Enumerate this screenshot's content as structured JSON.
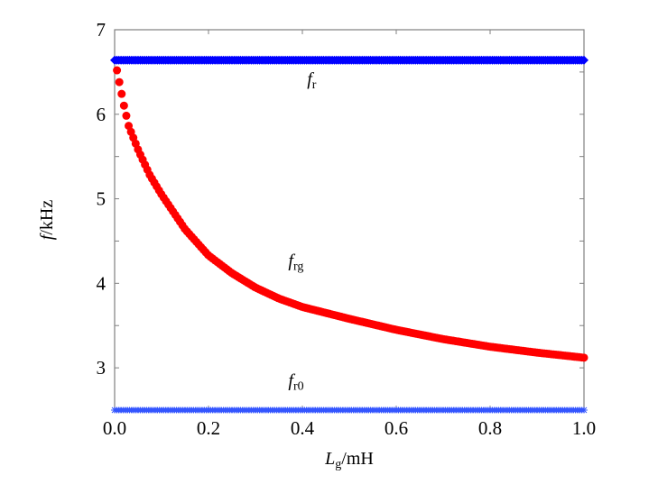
{
  "chart_data": {
    "type": "scatter",
    "title": "",
    "xlabel": {
      "main": "L",
      "sub": "g",
      "unit": "/mH"
    },
    "ylabel": {
      "main": "f",
      "unit": "/kHz"
    },
    "xlim": [
      0,
      1.0
    ],
    "ylim": [
      2.5,
      7
    ],
    "xticks": [
      "0.0",
      "0.2",
      "0.4",
      "0.6",
      "0.8",
      "1.0"
    ],
    "xtick_values": [
      0,
      0.2,
      0.4,
      0.6,
      0.8,
      1.0
    ],
    "yticks": [
      "3",
      "4",
      "5",
      "6",
      "7"
    ],
    "ytick_values": [
      3,
      4,
      5,
      6,
      7
    ],
    "grid": false,
    "series": [
      {
        "name": "fr",
        "label_main": "f",
        "label_sub": "r",
        "color": "#0000ff",
        "marker": "diamond",
        "x": [
          0,
          1.0
        ],
        "y": [
          6.64,
          6.64
        ],
        "label_at": [
          0.41,
          6.35
        ]
      },
      {
        "name": "frg",
        "label_main": "f",
        "label_sub": "rg",
        "color": "#ff0000",
        "marker": "circle",
        "x": [
          0.005,
          0.01,
          0.02,
          0.03,
          0.05,
          0.075,
          0.1,
          0.15,
          0.2,
          0.25,
          0.3,
          0.35,
          0.4,
          0.5,
          0.6,
          0.7,
          0.8,
          0.9,
          1.0
        ],
        "y": [
          6.52,
          6.38,
          6.1,
          5.86,
          5.58,
          5.28,
          5.05,
          4.64,
          4.33,
          4.12,
          3.95,
          3.82,
          3.72,
          3.58,
          3.45,
          3.34,
          3.25,
          3.18,
          3.12
        ],
        "label_at": [
          0.37,
          4.2
        ]
      },
      {
        "name": "fr0",
        "label_main": "f",
        "label_sub": "r0",
        "color": "#3355ff",
        "marker": "star",
        "x": [
          0,
          1.0
        ],
        "y": [
          2.5,
          2.5
        ],
        "label_at": [
          0.37,
          2.78
        ]
      }
    ]
  }
}
